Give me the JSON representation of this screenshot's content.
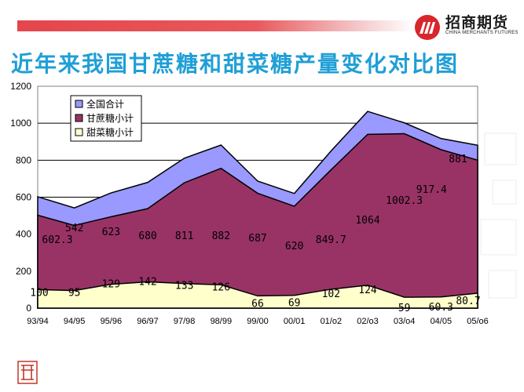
{
  "header": {
    "brand_name": "招商期货",
    "brand_sub": "CHINA MERCHANTS FUTURES",
    "colors": {
      "bar": "#e4464c",
      "title": "#1f9fd6"
    }
  },
  "chart_data": {
    "type": "area",
    "title": "近年来我国甘蔗糖和甜菜糖产量变化对比图",
    "categories": [
      "93/94",
      "94/95",
      "95/96",
      "96/97",
      "97/98",
      "98/99",
      "99/00",
      "00/01",
      "01/o2",
      "02/o3",
      "03/o4",
      "04/05",
      "05/o6"
    ],
    "ylim": [
      0,
      1200
    ],
    "yticks": [
      0,
      200,
      400,
      600,
      800,
      1000,
      1200
    ],
    "grid": true,
    "legend_position": "top-left",
    "series": [
      {
        "name": "全国合计",
        "color": "#9999ff",
        "values": [
          602.3,
          542,
          623,
          680,
          811,
          882,
          687,
          620,
          849.7,
          1064,
          1002.3,
          917.4,
          881
        ],
        "labels": [
          "602.3",
          "542",
          "623",
          "680",
          "811",
          "882",
          "687",
          "620",
          "849.7",
          "1064",
          "1002.3",
          "917.4",
          "881"
        ]
      },
      {
        "name": "甘蔗糖小计",
        "color": "#993366",
        "values": [
          502.3,
          447,
          494,
          538,
          678,
          756,
          621,
          551,
          747.7,
          940,
          943.3,
          857.1,
          800.3
        ]
      },
      {
        "name": "甜菜糖小计",
        "color": "#ffffcc",
        "values": [
          100,
          95,
          129,
          142,
          133,
          126,
          66,
          69,
          102,
          124,
          59,
          60.3,
          80.7
        ],
        "labels": [
          "100",
          "95",
          "129",
          "142",
          "133",
          "126",
          "66",
          "69",
          "102",
          "124",
          "59",
          "60.3",
          "80.7"
        ]
      }
    ]
  }
}
